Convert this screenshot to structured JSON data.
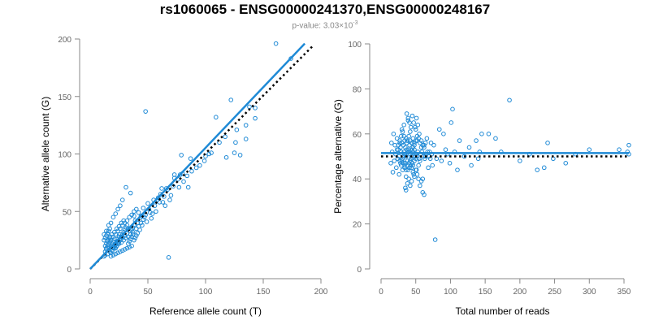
{
  "title": "rs1060065 - ENSG00000241370,ENSG00000248167",
  "subtitle_prefix": "p-value: 3.03×10",
  "subtitle_exp": "-3",
  "colors": {
    "point": "#1f8ad6",
    "fit": "#1f8ad6",
    "reference": "#000000",
    "axis": "#888888"
  },
  "chart_data": [
    {
      "type": "scatter",
      "name": "allele-count",
      "xlabel": "Reference allele count (T)",
      "ylabel": "Alternative allele count (G)",
      "xlim": [
        0,
        200
      ],
      "ylim": [
        0,
        200
      ],
      "xticks": [
        0,
        50,
        100,
        150,
        200
      ],
      "yticks": [
        0,
        50,
        100,
        150,
        200
      ],
      "fit_line": {
        "x1": 0,
        "y1": 0,
        "x2": 186,
        "y2": 196
      },
      "reference_line": {
        "x1": 0,
        "y1": 0,
        "x2": 193,
        "y2": 194
      },
      "points": [
        [
          161,
          196
        ],
        [
          174,
          183
        ],
        [
          122,
          147
        ],
        [
          48,
          137
        ],
        [
          127,
          121
        ],
        [
          109,
          132
        ],
        [
          138,
          141
        ],
        [
          143,
          131
        ],
        [
          135,
          113
        ],
        [
          135,
          125
        ],
        [
          143,
          140
        ],
        [
          126,
          110
        ],
        [
          125,
          101
        ],
        [
          118,
          97
        ],
        [
          130,
          99
        ],
        [
          105,
          101
        ],
        [
          99,
          94
        ],
        [
          79,
          99
        ],
        [
          87,
          96
        ],
        [
          78,
          82
        ],
        [
          80,
          83
        ],
        [
          84,
          81
        ],
        [
          73,
          82
        ],
        [
          73,
          79
        ],
        [
          85,
          71
        ],
        [
          72,
          72
        ],
        [
          67,
          69
        ],
        [
          64,
          63
        ],
        [
          70,
          64
        ],
        [
          69,
          60
        ],
        [
          68,
          10
        ],
        [
          77,
          71
        ],
        [
          61,
          65
        ],
        [
          58,
          60
        ],
        [
          50,
          57
        ],
        [
          46,
          53
        ],
        [
          42,
          49
        ],
        [
          38,
          46
        ],
        [
          56,
          55
        ],
        [
          52,
          49
        ],
        [
          48,
          47
        ],
        [
          46,
          43
        ],
        [
          44,
          40
        ],
        [
          42,
          37
        ],
        [
          40,
          35
        ],
        [
          37,
          32
        ],
        [
          35,
          30
        ],
        [
          33,
          28
        ],
        [
          31,
          27
        ],
        [
          29,
          25
        ],
        [
          27,
          23
        ],
        [
          25,
          22
        ],
        [
          23,
          20
        ],
        [
          21,
          18
        ],
        [
          19,
          16
        ],
        [
          17,
          15
        ],
        [
          15,
          13
        ],
        [
          13,
          12
        ],
        [
          12,
          11
        ],
        [
          14,
          18
        ],
        [
          16,
          22
        ],
        [
          18,
          25
        ],
        [
          20,
          28
        ],
        [
          22,
          30
        ],
        [
          24,
          33
        ],
        [
          26,
          35
        ],
        [
          28,
          38
        ],
        [
          30,
          40
        ],
        [
          32,
          42
        ],
        [
          34,
          45
        ],
        [
          36,
          47
        ],
        [
          38,
          50
        ],
        [
          40,
          52
        ],
        [
          31,
          71
        ],
        [
          35,
          66
        ],
        [
          28,
          60
        ],
        [
          26,
          55
        ],
        [
          24,
          52
        ],
        [
          22,
          48
        ],
        [
          20,
          45
        ],
        [
          18,
          40
        ],
        [
          16,
          38
        ],
        [
          14,
          33
        ],
        [
          12,
          30
        ],
        [
          15,
          25
        ],
        [
          17,
          27
        ],
        [
          19,
          30
        ],
        [
          21,
          32
        ],
        [
          23,
          35
        ],
        [
          25,
          37
        ],
        [
          27,
          40
        ],
        [
          29,
          42
        ],
        [
          13,
          20
        ],
        [
          14,
          22
        ],
        [
          15,
          24
        ],
        [
          16,
          26
        ],
        [
          17,
          28
        ],
        [
          18,
          20
        ],
        [
          19,
          22
        ],
        [
          20,
          24
        ],
        [
          21,
          26
        ],
        [
          22,
          18
        ],
        [
          23,
          20
        ],
        [
          24,
          22
        ],
        [
          25,
          24
        ],
        [
          26,
          26
        ],
        [
          27,
          28
        ],
        [
          28,
          30
        ],
        [
          29,
          32
        ],
        [
          30,
          34
        ],
        [
          31,
          36
        ],
        [
          32,
          38
        ],
        [
          33,
          22
        ],
        [
          34,
          24
        ],
        [
          35,
          26
        ],
        [
          36,
          28
        ],
        [
          37,
          30
        ],
        [
          38,
          25
        ],
        [
          39,
          27
        ],
        [
          40,
          29
        ],
        [
          13,
          15
        ],
        [
          14,
          17
        ],
        [
          15,
          19
        ],
        [
          16,
          21
        ],
        [
          17,
          23
        ],
        [
          18,
          14
        ],
        [
          19,
          16
        ],
        [
          20,
          18
        ],
        [
          21,
          20
        ],
        [
          22,
          22
        ],
        [
          23,
          24
        ],
        [
          24,
          26
        ],
        [
          25,
          28
        ],
        [
          26,
          30
        ],
        [
          12,
          25
        ],
        [
          13,
          27
        ],
        [
          14,
          29
        ],
        [
          15,
          31
        ],
        [
          16,
          33
        ],
        [
          17,
          35
        ],
        [
          18,
          11
        ],
        [
          20,
          12
        ],
        [
          22,
          13
        ],
        [
          24,
          14
        ],
        [
          26,
          15
        ],
        [
          28,
          16
        ],
        [
          30,
          17
        ],
        [
          32,
          18
        ],
        [
          34,
          19
        ],
        [
          36,
          20
        ],
        [
          55,
          60
        ],
        [
          60,
          58
        ],
        [
          65,
          55
        ],
        [
          62,
          70
        ],
        [
          57,
          50
        ],
        [
          53,
          44
        ],
        [
          49,
          41
        ],
        [
          45,
          38
        ],
        [
          43,
          34
        ],
        [
          41,
          31
        ],
        [
          39,
          42
        ],
        [
          37,
          36
        ],
        [
          34,
          33
        ],
        [
          32,
          31
        ],
        [
          30,
          29
        ],
        [
          28,
          27
        ],
        [
          26,
          25
        ],
        [
          24,
          23
        ],
        [
          22,
          21
        ],
        [
          20,
          19
        ],
        [
          95,
          90
        ],
        [
          100,
          98
        ],
        [
          103,
          100
        ],
        [
          92,
          88
        ],
        [
          88,
          85
        ],
        [
          112,
          110
        ],
        [
          117,
          115
        ],
        [
          81,
          76
        ],
        [
          76,
          78
        ],
        [
          66,
          70
        ],
        [
          63,
          58
        ],
        [
          59,
          62
        ],
        [
          54,
          48
        ],
        [
          51,
          52
        ],
        [
          47,
          45
        ],
        [
          44,
          46
        ],
        [
          41,
          40
        ],
        [
          38,
          38
        ],
        [
          36,
          34
        ],
        [
          33,
          35
        ]
      ]
    },
    {
      "type": "scatter",
      "name": "percentage",
      "xlabel": "Total number of reads",
      "ylabel": "Percentage alternative (G)",
      "xlim": [
        0,
        350
      ],
      "ylim": [
        0,
        100
      ],
      "xticks": [
        0,
        50,
        100,
        150,
        200,
        250,
        300,
        350
      ],
      "yticks": [
        0,
        20,
        40,
        60,
        80,
        100
      ],
      "fit_line": {
        "x1": 0,
        "y1": 51.5,
        "x2": 357,
        "y2": 51.5
      },
      "reference_line": {
        "x1": 0,
        "y1": 50,
        "x2": 357,
        "y2": 50
      },
      "points": [
        [
          357,
          55
        ],
        [
          357,
          51
        ],
        [
          355,
          52
        ],
        [
          343,
          53
        ],
        [
          300,
          53
        ],
        [
          280,
          51
        ],
        [
          266,
          47
        ],
        [
          248,
          49
        ],
        [
          240,
          56
        ],
        [
          235,
          45
        ],
        [
          225,
          44
        ],
        [
          214,
          51
        ],
        [
          200,
          48
        ],
        [
          185,
          75
        ],
        [
          173,
          52
        ],
        [
          165,
          58
        ],
        [
          155,
          60
        ],
        [
          145,
          60
        ],
        [
          142,
          52
        ],
        [
          140,
          49
        ],
        [
          137,
          57
        ],
        [
          130,
          46
        ],
        [
          127,
          54
        ],
        [
          120,
          50
        ],
        [
          113,
          57
        ],
        [
          110,
          44
        ],
        [
          106,
          52
        ],
        [
          103,
          71
        ],
        [
          101,
          65
        ],
        [
          99,
          47
        ],
        [
          96,
          51
        ],
        [
          93,
          53
        ],
        [
          90,
          60
        ],
        [
          87,
          48
        ],
        [
          84,
          62
        ],
        [
          80,
          49
        ],
        [
          78,
          13
        ],
        [
          76,
          55
        ],
        [
          74,
          46
        ],
        [
          72,
          56
        ],
        [
          70,
          52
        ],
        [
          68,
          45
        ],
        [
          66,
          58
        ],
        [
          64,
          50
        ],
        [
          62,
          55
        ],
        [
          60,
          40
        ],
        [
          58,
          54
        ],
        [
          56,
          48
        ],
        [
          55,
          60
        ],
        [
          54,
          46
        ],
        [
          53,
          52
        ],
        [
          52,
          57
        ],
        [
          51,
          44
        ],
        [
          50,
          62
        ],
        [
          49,
          50
        ],
        [
          48,
          55
        ],
        [
          47,
          42
        ],
        [
          46,
          58
        ],
        [
          45,
          47
        ],
        [
          44,
          53
        ],
        [
          43,
          49
        ],
        [
          42,
          61
        ],
        [
          41,
          45
        ],
        [
          40,
          52
        ],
        [
          39,
          66
        ],
        [
          38,
          48
        ],
        [
          37,
          56
        ],
        [
          36,
          41
        ],
        [
          35,
          54
        ],
        [
          34,
          46
        ],
        [
          33,
          59
        ],
        [
          32,
          50
        ],
        [
          31,
          44
        ],
        [
          30,
          62
        ],
        [
          29,
          52
        ],
        [
          28,
          47
        ],
        [
          27,
          56
        ],
        [
          26,
          42
        ],
        [
          25,
          53
        ],
        [
          24,
          49
        ],
        [
          23,
          58
        ],
        [
          22,
          45
        ],
        [
          21,
          51
        ],
        [
          20,
          55
        ],
        [
          19,
          48
        ],
        [
          18,
          60
        ],
        [
          17,
          43
        ],
        [
          16,
          52
        ],
        [
          15,
          56
        ],
        [
          14,
          47
        ],
        [
          35,
          36
        ],
        [
          36,
          35
        ],
        [
          38,
          38
        ],
        [
          40,
          40
        ],
        [
          42,
          37
        ],
        [
          44,
          39
        ],
        [
          46,
          43
        ],
        [
          48,
          41
        ],
        [
          50,
          44
        ],
        [
          52,
          42
        ],
        [
          54,
          40
        ],
        [
          56,
          37
        ],
        [
          58,
          39
        ],
        [
          60,
          34
        ],
        [
          62,
          33
        ],
        [
          45,
          68
        ],
        [
          47,
          65
        ],
        [
          49,
          63
        ],
        [
          51,
          67
        ],
        [
          53,
          64
        ],
        [
          37,
          69
        ],
        [
          39,
          67
        ],
        [
          41,
          65
        ],
        [
          43,
          63
        ],
        [
          33,
          64
        ],
        [
          31,
          61
        ],
        [
          29,
          59
        ],
        [
          27,
          57
        ],
        [
          25,
          55
        ],
        [
          23,
          53
        ],
        [
          34,
          51
        ],
        [
          36,
          50
        ],
        [
          38,
          52
        ],
        [
          40,
          53
        ],
        [
          42,
          51
        ],
        [
          44,
          50
        ],
        [
          46,
          52
        ],
        [
          48,
          53
        ],
        [
          50,
          51
        ],
        [
          52,
          50
        ],
        [
          55,
          49
        ],
        [
          57,
          51
        ],
        [
          59,
          52
        ],
        [
          61,
          50
        ],
        [
          63,
          49
        ],
        [
          65,
          51
        ],
        [
          67,
          52
        ],
        [
          69,
          50
        ],
        [
          71,
          49
        ],
        [
          73,
          51
        ],
        [
          30,
          48
        ],
        [
          32,
          47
        ],
        [
          34,
          45
        ],
        [
          36,
          44
        ],
        [
          38,
          46
        ],
        [
          40,
          47
        ],
        [
          42,
          48
        ],
        [
          44,
          45
        ],
        [
          46,
          46
        ],
        [
          48,
          48
        ],
        [
          50,
          49
        ],
        [
          28,
          54
        ],
        [
          30,
          56
        ],
        [
          32,
          55
        ],
        [
          34,
          57
        ],
        [
          36,
          58
        ],
        [
          38,
          57
        ],
        [
          40,
          59
        ],
        [
          42,
          57
        ],
        [
          44,
          56
        ],
        [
          46,
          54
        ],
        [
          48,
          56
        ],
        [
          50,
          57
        ],
        [
          52,
          59
        ],
        [
          54,
          58
        ],
        [
          56,
          56
        ],
        [
          58,
          57
        ],
        [
          60,
          55
        ],
        [
          62,
          54
        ],
        [
          64,
          56
        ],
        [
          26,
          50
        ],
        [
          27,
          48
        ],
        [
          29,
          46
        ],
        [
          31,
          49
        ],
        [
          33,
          52
        ],
        [
          35,
          47
        ],
        [
          37,
          53
        ],
        [
          39,
          44
        ],
        [
          41,
          55
        ],
        [
          43,
          46
        ]
      ]
    }
  ]
}
